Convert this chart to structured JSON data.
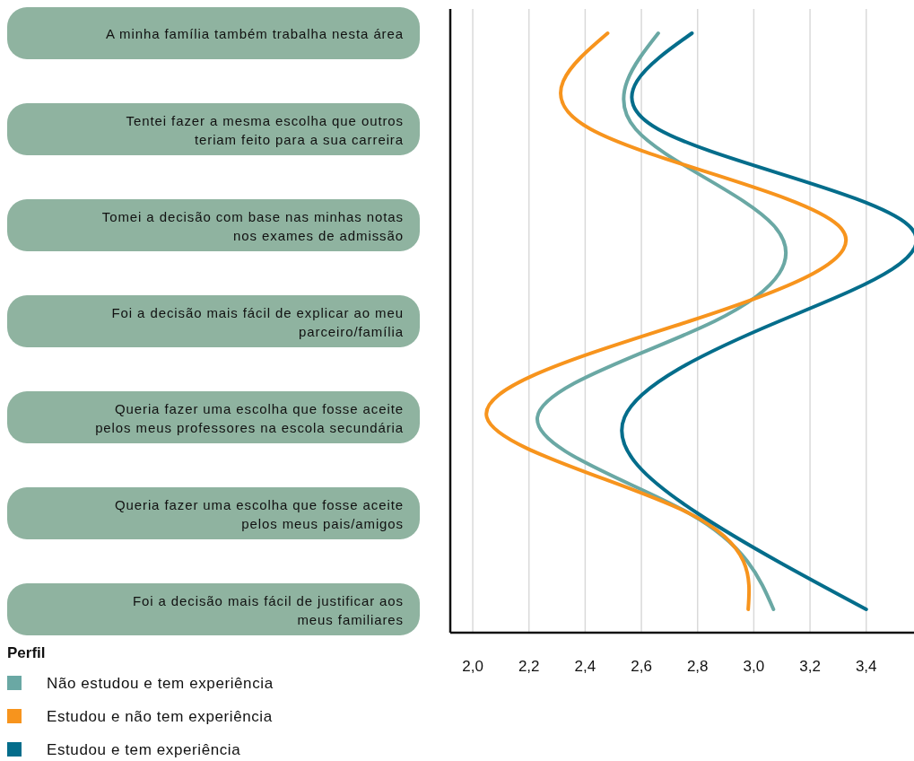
{
  "chart_data": {
    "type": "line",
    "orientation": "horizontal",
    "categories": [
      "A minha família também trabalha nesta área",
      "Tentei fazer a mesma escolha que outros teriam feito para a sua carreira",
      "Tomei a decisão com base nas minhas notas nos exames de admissão",
      "Foi a decisão mais fácil de explicar ao meu parceiro/família",
      "Queria fazer uma escolha que fosse aceite pelos meus professores na escola secundária",
      "Queria fazer uma escolha que fosse aceite pelos meus pais/amigos",
      "Foi a decisão mais fácil de justificar aos meus familiares"
    ],
    "series": [
      {
        "name": "Não estudou e tem experiência",
        "color": "#6aa8a4",
        "values": [
          2.66,
          2.58,
          3.07,
          2.86,
          2.23,
          2.77,
          3.07
        ]
      },
      {
        "name": "Estudou e não tem experiência",
        "color": "#f7941d",
        "values": [
          2.48,
          2.42,
          3.3,
          2.77,
          2.05,
          2.77,
          2.98
        ]
      },
      {
        "name": "Estudou e tem experiência",
        "color": "#046d8b",
        "values": [
          2.78,
          2.66,
          3.55,
          3.09,
          2.54,
          2.8,
          3.4
        ]
      }
    ],
    "xlim": [
      1.92,
      3.57
    ],
    "xticks": [
      {
        "value": 2.0,
        "label": "2,0"
      },
      {
        "value": 2.2,
        "label": "2,2"
      },
      {
        "value": 2.4,
        "label": "2,4"
      },
      {
        "value": 2.6,
        "label": "2,6"
      },
      {
        "value": 2.8,
        "label": "2,8"
      },
      {
        "value": 3.0,
        "label": "3,0"
      },
      {
        "value": 3.2,
        "label": "3,2"
      },
      {
        "value": 3.4,
        "label": "3,4"
      }
    ],
    "grid": "x",
    "legend": "bottom left",
    "legend_title": "Perfil"
  }
}
